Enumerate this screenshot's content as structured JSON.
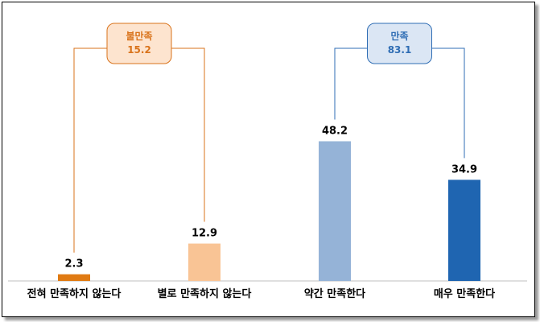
{
  "chart_data": {
    "type": "bar",
    "categories": [
      "전혀 만족하지 않는다",
      "별로 만족하지 않는다",
      "약간 만족한다",
      "매우 만족한다"
    ],
    "values": [
      2.3,
      12.9,
      48.2,
      34.9
    ],
    "value_labels": [
      "2.3",
      "12.9",
      "48.2",
      "34.9"
    ],
    "bar_colors": [
      "#e07a12",
      "#f9c495",
      "#95b3d7",
      "#1f65b1"
    ],
    "ylim": [
      0,
      60
    ],
    "groups": [
      {
        "name": "불만족",
        "value": "15.2",
        "color": "#d9731b",
        "fill": "#fde4cf",
        "covers": [
          0,
          1
        ]
      },
      {
        "name": "만족",
        "value": "83.1",
        "color": "#2f6db4",
        "fill": "#dbe6f4",
        "covers": [
          2,
          3
        ]
      }
    ],
    "grid": false
  }
}
